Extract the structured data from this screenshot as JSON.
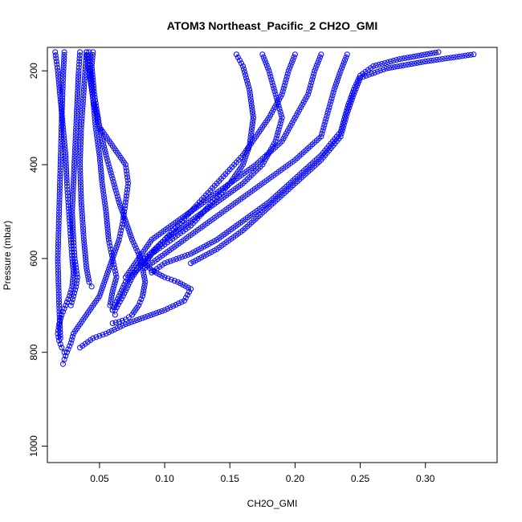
{
  "chart_data": {
    "type": "scatter",
    "title": "ATOM3 Northeast_Pacific_2 CH2O_GMI",
    "xlabel": "CH2O_GMI",
    "ylabel": "Pressure (mbar)",
    "xlim": [
      0.01,
      0.355
    ],
    "ylim": [
      150,
      1035
    ],
    "y_reversed": true,
    "x_ticks": [
      0.05,
      0.1,
      0.15,
      0.2,
      0.25,
      0.3
    ],
    "x_tick_labels": [
      "0.05",
      "0.10",
      "0.15",
      "0.20",
      "0.25",
      "0.30"
    ],
    "y_ticks": [
      200,
      400,
      600,
      800,
      1000
    ],
    "y_tick_labels": [
      "200",
      "400",
      "600",
      "800",
      "1000"
    ],
    "grid": false,
    "marker": "open-circle",
    "color": "#0000ff",
    "series": [
      {
        "x": [
          0.016,
          0.018,
          0.02,
          0.022,
          0.024,
          0.025,
          0.026,
          0.027,
          0.028,
          0.029,
          0.03,
          0.029,
          0.027,
          0.024,
          0.021,
          0.019,
          0.018,
          0.019,
          0.021,
          0.023
        ],
        "y": [
          160,
          200,
          260,
          320,
          380,
          440,
          480,
          520,
          560,
          600,
          630,
          660,
          680,
          700,
          720,
          740,
          760,
          775,
          790,
          800
        ]
      },
      {
        "x": [
          0.035,
          0.034,
          0.033,
          0.032,
          0.031,
          0.03,
          0.029,
          0.03,
          0.031,
          0.032,
          0.033,
          0.032,
          0.03,
          0.028
        ],
        "y": [
          160,
          200,
          260,
          320,
          380,
          440,
          500,
          560,
          600,
          620,
          640,
          660,
          680,
          700
        ]
      },
      {
        "x": [
          0.04,
          0.042,
          0.045,
          0.047,
          0.05,
          0.052,
          0.055,
          0.057,
          0.06,
          0.063,
          0.06,
          0.058,
          0.06,
          0.062
        ],
        "y": [
          160,
          200,
          260,
          320,
          380,
          440,
          500,
          560,
          600,
          640,
          670,
          700,
          710,
          720
        ]
      },
      {
        "x": [
          0.045,
          0.044,
          0.046,
          0.05,
          0.06,
          0.07,
          0.072,
          0.07,
          0.068,
          0.065,
          0.06,
          0.055,
          0.05,
          0.045,
          0.04,
          0.035,
          0.03,
          0.028,
          0.025,
          0.023,
          0.022
        ],
        "y": [
          160,
          190,
          250,
          320,
          360,
          400,
          440,
          480,
          520,
          560,
          600,
          640,
          680,
          700,
          720,
          740,
          760,
          780,
          800,
          815,
          825
        ]
      },
      {
        "x": [
          0.042,
          0.043,
          0.045,
          0.05,
          0.055,
          0.06,
          0.065,
          0.07,
          0.075,
          0.08,
          0.083,
          0.085,
          0.083,
          0.08,
          0.075,
          0.07,
          0.065,
          0.06
        ],
        "y": [
          160,
          200,
          260,
          320,
          380,
          430,
          480,
          520,
          560,
          590,
          620,
          650,
          680,
          700,
          720,
          730,
          735,
          738
        ]
      },
      {
        "x": [
          0.155,
          0.16,
          0.165,
          0.168,
          0.165,
          0.16,
          0.15,
          0.14,
          0.13,
          0.12,
          0.11,
          0.1,
          0.09,
          0.085,
          0.09,
          0.1,
          0.11,
          0.12,
          0.115,
          0.1,
          0.085,
          0.07,
          0.055,
          0.045,
          0.035
        ],
        "y": [
          165,
          190,
          240,
          300,
          360,
          400,
          440,
          470,
          500,
          530,
          550,
          570,
          590,
          610,
          625,
          640,
          650,
          665,
          690,
          710,
          725,
          740,
          760,
          770,
          790
        ]
      },
      {
        "x": [
          0.2,
          0.195,
          0.19,
          0.18,
          0.17,
          0.16,
          0.15,
          0.14,
          0.13,
          0.12,
          0.11,
          0.1,
          0.09,
          0.08,
          0.07,
          0.065,
          0.06
        ],
        "y": [
          165,
          200,
          250,
          300,
          340,
          380,
          410,
          440,
          470,
          500,
          530,
          560,
          590,
          620,
          650,
          680,
          710
        ]
      },
      {
        "x": [
          0.175,
          0.18,
          0.185,
          0.19,
          0.185,
          0.175,
          0.16,
          0.14,
          0.12,
          0.1,
          0.085,
          0.075,
          0.068,
          0.062
        ],
        "y": [
          165,
          200,
          250,
          300,
          350,
          400,
          440,
          480,
          520,
          560,
          600,
          640,
          680,
          710
        ]
      },
      {
        "x": [
          0.22,
          0.215,
          0.21,
          0.2,
          0.19,
          0.17,
          0.15,
          0.13,
          0.11,
          0.09,
          0.08,
          0.07
        ],
        "y": [
          165,
          200,
          250,
          300,
          350,
          400,
          440,
          480,
          520,
          560,
          600,
          640
        ]
      },
      {
        "x": [
          0.24,
          0.235,
          0.23,
          0.225,
          0.22,
          0.2,
          0.18,
          0.16,
          0.14,
          0.12,
          0.1,
          0.085
        ],
        "y": [
          165,
          200,
          240,
          290,
          340,
          390,
          430,
          470,
          510,
          550,
          590,
          620
        ]
      },
      {
        "x": [
          0.31,
          0.28,
          0.26,
          0.25,
          0.245,
          0.24,
          0.235,
          0.22,
          0.2,
          0.18,
          0.16,
          0.14,
          0.12,
          0.1,
          0.09
        ],
        "y": [
          160,
          175,
          190,
          210,
          240,
          280,
          330,
          380,
          430,
          480,
          520,
          560,
          590,
          610,
          630
        ]
      },
      {
        "x": [
          0.337,
          0.3,
          0.27,
          0.25,
          0.245,
          0.24,
          0.235,
          0.22,
          0.2,
          0.18,
          0.16,
          0.14,
          0.12
        ],
        "y": [
          165,
          180,
          195,
          215,
          250,
          290,
          340,
          390,
          440,
          490,
          540,
          580,
          610
        ]
      },
      {
        "x": [
          0.023,
          0.022,
          0.021,
          0.02,
          0.019,
          0.018,
          0.019,
          0.02
        ],
        "y": [
          160,
          220,
          300,
          400,
          500,
          600,
          700,
          770
        ]
      },
      {
        "x": [
          0.04,
          0.038,
          0.036,
          0.035,
          0.036,
          0.038,
          0.04,
          0.042,
          0.044
        ],
        "y": [
          160,
          240,
          320,
          400,
          480,
          560,
          620,
          650,
          660
        ]
      }
    ]
  }
}
